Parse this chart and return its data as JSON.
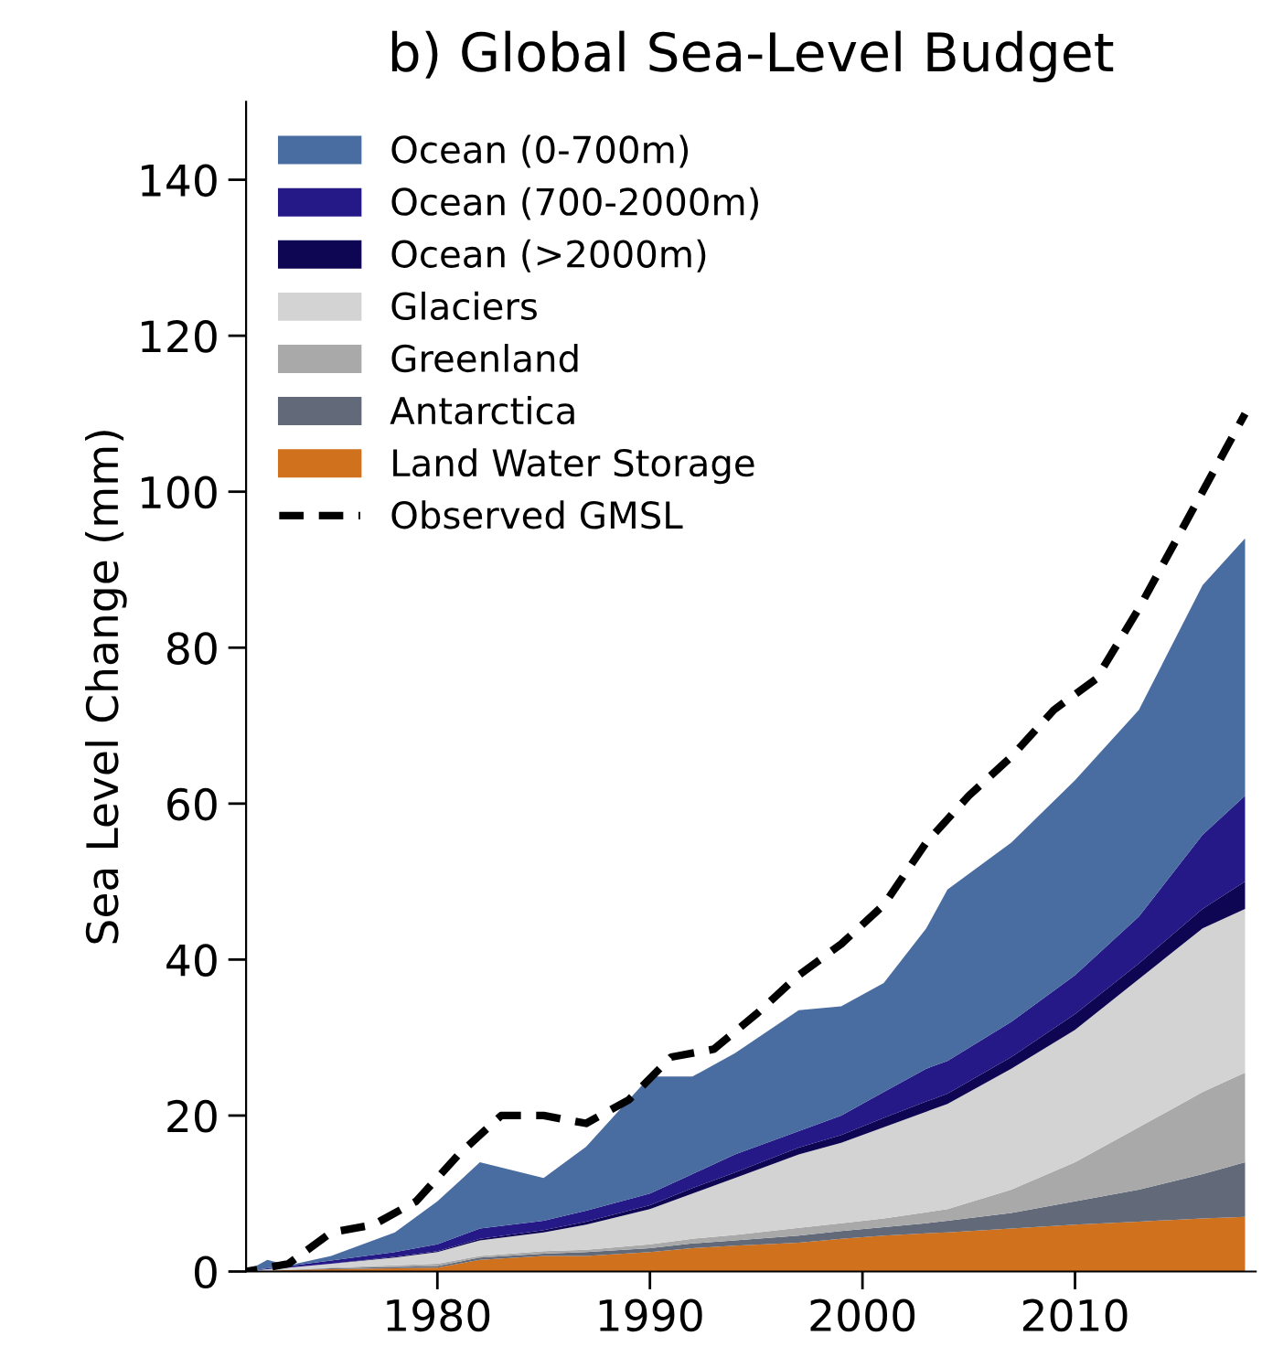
{
  "chart_data": {
    "type": "area",
    "title": "b) Global Sea-Level Budget",
    "ylabel": "Sea Level Change (mm)",
    "stacked": true,
    "x": [
      1971,
      1972,
      1973,
      1975,
      1978,
      1980,
      1982,
      1985,
      1987,
      1990,
      1992,
      1994,
      1997,
      1999,
      2001,
      2003,
      2004,
      2007,
      2010,
      2013,
      2016,
      2018
    ],
    "series": [
      {
        "name": "Land Water Storage",
        "color": "#d0711e",
        "values": [
          0,
          0.1,
          0.2,
          0.3,
          0.4,
          0.5,
          1.5,
          2,
          2,
          2.5,
          3,
          3.3,
          3.7,
          4.2,
          4.6,
          4.9,
          5,
          5.5,
          6,
          6.4,
          6.8,
          7
        ]
      },
      {
        "name": "Antarctica",
        "color": "#626a7a",
        "values": [
          0,
          0,
          0,
          0.1,
          0.2,
          0.2,
          0.3,
          0.3,
          0.5,
          0.5,
          0.6,
          0.7,
          0.9,
          1,
          1.1,
          1.3,
          1.5,
          2,
          3,
          4.1,
          5.7,
          7
        ]
      },
      {
        "name": "Greenland",
        "color": "#a9a9a9",
        "values": [
          0,
          0,
          0,
          0.1,
          0.2,
          0.3,
          0.2,
          0.3,
          0.3,
          0.5,
          0.6,
          0.7,
          1,
          1,
          1.1,
          1.4,
          1.5,
          3,
          5,
          8,
          10.5,
          11.5
        ]
      },
      {
        "name": "Glaciers",
        "color": "#d3d3d3",
        "values": [
          0,
          0.2,
          0.3,
          0.5,
          1,
          1.5,
          2,
          2.4,
          3.2,
          4.5,
          5.8,
          7.3,
          9.4,
          10.3,
          11.7,
          12.9,
          13.5,
          15.5,
          17,
          19,
          21,
          21
        ]
      },
      {
        "name": "Ocean (>2000m)",
        "color": "#0f0653",
        "values": [
          0,
          0,
          0,
          0,
          0.1,
          0.1,
          0.2,
          0.3,
          0.4,
          0.5,
          0.7,
          0.7,
          0.9,
          1,
          1.2,
          1.3,
          1.3,
          1.5,
          2,
          2,
          2.5,
          3.5
        ]
      },
      {
        "name": "Ocean (700-2000m)",
        "color": "#241987",
        "values": [
          0,
          0.1,
          0.2,
          0.4,
          0.6,
          0.9,
          1.3,
          1.2,
          1.4,
          1.5,
          1.8,
          2.3,
          2.1,
          2.5,
          3.3,
          4.2,
          4.2,
          4.5,
          5,
          6,
          9.5,
          11
        ]
      },
      {
        "name": "Ocean (0-700m)",
        "color": "#4a6da1",
        "values": [
          0,
          1.1,
          0.1,
          0.6,
          2.5,
          5.5,
          8.5,
          5.5,
          8.2,
          15,
          12.5,
          13,
          15.5,
          14,
          14,
          18,
          22,
          23,
          25,
          26.5,
          32,
          33
        ]
      },
      {
        "name": "Observed GMSL",
        "type": "line",
        "color": "#000000",
        "line_style": "dashed",
        "x": [
          1971,
          1973,
          1975,
          1977,
          1979,
          1981,
          1983,
          1985,
          1987,
          1989,
          1991,
          1993,
          1995,
          1997,
          1999,
          2001,
          2003,
          2005,
          2007,
          2009,
          2011,
          2013,
          2015,
          2017,
          2018
        ],
        "values": [
          0,
          1,
          5,
          6,
          9,
          15,
          20,
          20,
          19,
          22,
          27.5,
          28.5,
          33,
          38,
          42,
          47,
          55,
          61,
          66,
          72,
          76,
          85,
          95,
          105,
          110
        ]
      }
    ],
    "xlim": [
      1971,
      2018.5
    ],
    "ylim": [
      0,
      150
    ],
    "xticks": [
      1980,
      1990,
      2000,
      2010
    ],
    "yticks": [
      0,
      20,
      40,
      60,
      80,
      100,
      120,
      140
    ],
    "legend": "top left",
    "grid": false
  }
}
